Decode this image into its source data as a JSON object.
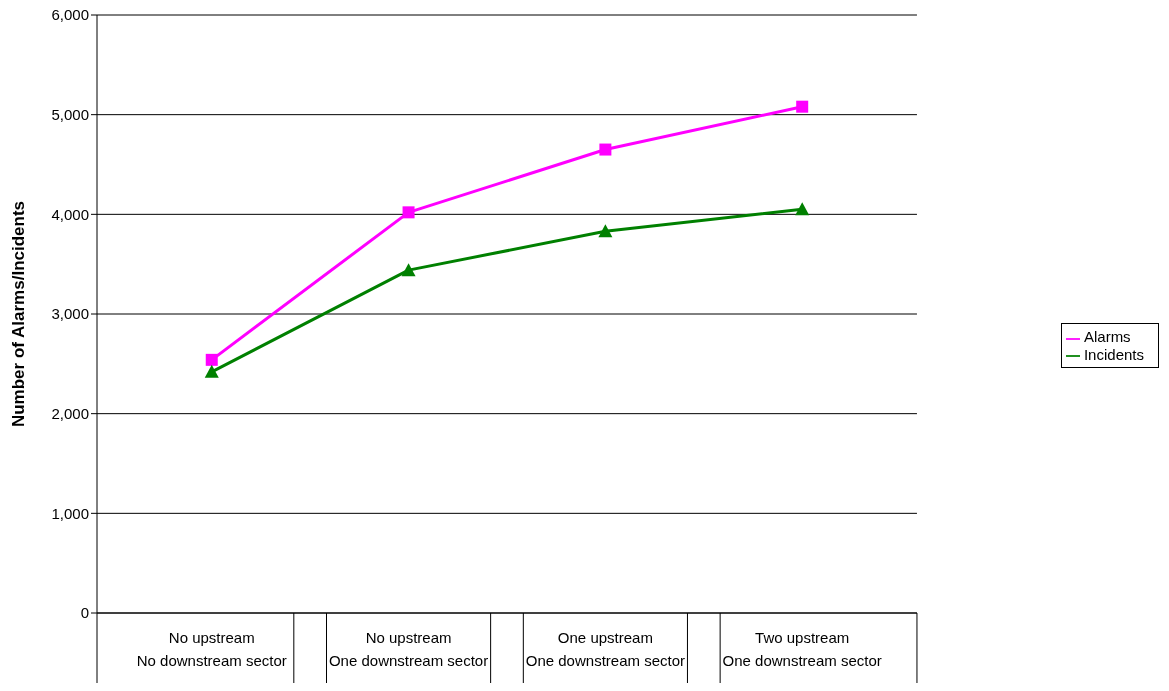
{
  "chart_data": {
    "type": "line",
    "ylabel": "Number of Alarms/Incidents",
    "categories": [
      "No upstream\nNo downstream sector",
      "No upstream\nOne downstream sector",
      "One upstream\nOne downstream sector",
      "Two upstream\nOne downstream sector"
    ],
    "series": [
      {
        "name": "Alarms",
        "color": "#ff00ff",
        "marker": "square",
        "values": [
          2540,
          4020,
          4650,
          5080
        ]
      },
      {
        "name": "Incidents",
        "color": "#008000",
        "marker": "triangle",
        "values": [
          2420,
          3440,
          3830,
          4050
        ]
      }
    ],
    "ylim": [
      0,
      6000
    ],
    "yticks": [
      0,
      {
        "value": 1000,
        "label": "1,000"
      },
      {
        "value": 2000,
        "label": "2,000"
      },
      {
        "value": 3000,
        "label": "3,000"
      },
      {
        "value": 4000,
        "label": "4,000"
      },
      {
        "value": 5000,
        "label": "5,000"
      },
      {
        "value": 6000,
        "label": "6,000"
      }
    ],
    "grid": "y",
    "legend": "right"
  }
}
